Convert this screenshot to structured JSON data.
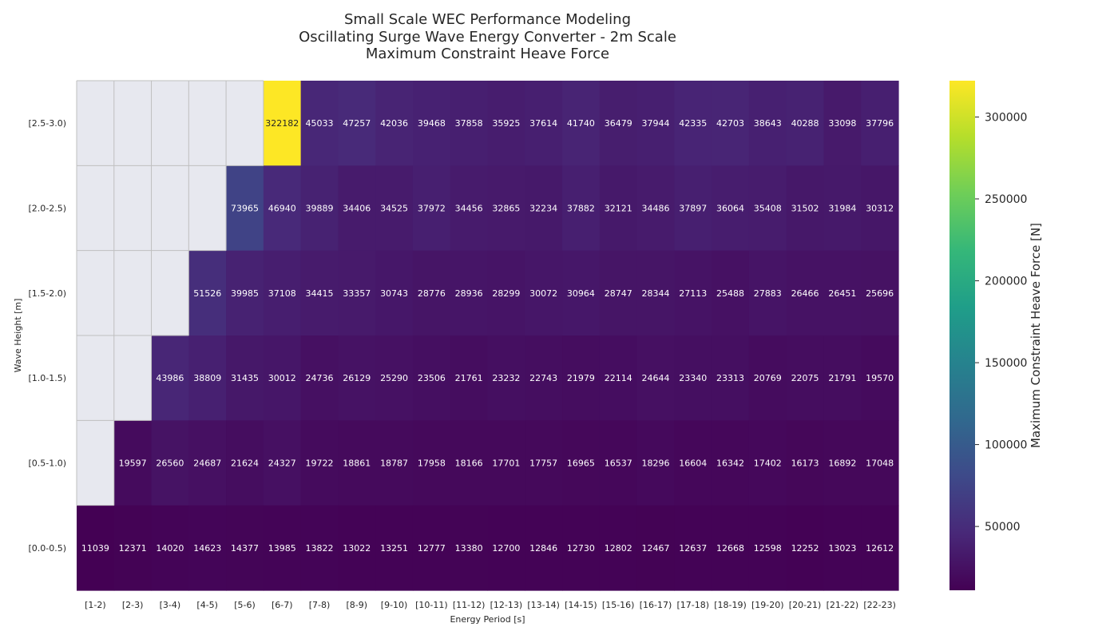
{
  "chart_data": {
    "type": "heatmap",
    "title": [
      "Small Scale WEC Performance Modeling",
      "Oscillating Surge Wave Energy Converter - 2m Scale",
      "Maximum Constraint Heave Force"
    ],
    "xlabel": "Energy Period [s]",
    "ylabel": "Wave Height [m]",
    "colorbar_label": "Maximum Constraint Heave Force [N]",
    "colormap": "viridis",
    "nan_color": "#e7e8ef",
    "vmin": 11039,
    "vmax": 322182,
    "colorbar_ticks": [
      50000,
      100000,
      150000,
      200000,
      250000,
      300000
    ],
    "colorbar_tick_labels": [
      "50000",
      "100000",
      "150000",
      "200000",
      "250000",
      "300000"
    ],
    "x_categories": [
      "[1-2)",
      "[2-3)",
      "[3-4)",
      "[4-5)",
      "[5-6)",
      "[6-7)",
      "[7-8)",
      "[8-9)",
      "[9-10)",
      "[10-11)",
      "[11-12)",
      "[12-13)",
      "[13-14)",
      "[14-15)",
      "[15-16)",
      "[16-17)",
      "[17-18)",
      "[18-19)",
      "[19-20)",
      "[20-21)",
      "[21-22)",
      "[22-23)"
    ],
    "y_categories": [
      "[2.5-3.0)",
      "[2.0-2.5)",
      "[1.5-2.0)",
      "[1.0-1.5)",
      "[0.5-1.0)",
      "[0.0-0.5)"
    ],
    "values": [
      [
        null,
        null,
        null,
        null,
        null,
        322182,
        45033,
        47257,
        42036,
        39468,
        37858,
        35925,
        37614,
        41740,
        36479,
        37944,
        42335,
        42703,
        38643,
        40288,
        33098,
        37796
      ],
      [
        null,
        null,
        null,
        null,
        73965,
        46940,
        39889,
        34406,
        34525,
        37972,
        34456,
        32865,
        32234,
        37882,
        32121,
        34486,
        37897,
        36064,
        35408,
        31502,
        31984,
        30312
      ],
      [
        null,
        null,
        null,
        51526,
        39985,
        37108,
        34415,
        33357,
        30743,
        28776,
        28936,
        28299,
        30072,
        30964,
        28747,
        28344,
        27113,
        25488,
        27883,
        26466,
        26451,
        25696
      ],
      [
        null,
        null,
        43986,
        38809,
        31435,
        30012,
        24736,
        26129,
        25290,
        23506,
        21761,
        23232,
        22743,
        21979,
        22114,
        24644,
        23340,
        23313,
        20769,
        22075,
        21791,
        19570
      ],
      [
        null,
        19597,
        26560,
        24687,
        21624,
        24327,
        19722,
        18861,
        18787,
        17958,
        18166,
        17701,
        17757,
        16965,
        16537,
        18296,
        16604,
        16342,
        17402,
        16173,
        16892,
        17048
      ],
      [
        11039,
        12371,
        14020,
        14623,
        14377,
        13985,
        13822,
        13022,
        13251,
        12777,
        13380,
        12700,
        12846,
        12730,
        12802,
        12467,
        12637,
        12668,
        12598,
        12252,
        13023,
        12612
      ]
    ]
  }
}
